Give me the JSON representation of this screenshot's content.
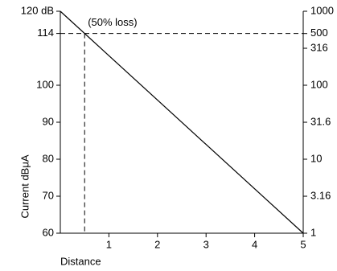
{
  "chart_data": {
    "type": "line",
    "x_label": "Distance",
    "y_label": "Current dBμA",
    "x": [
      0,
      5
    ],
    "series": [
      {
        "color": "#000000",
        "values": [
          120,
          60
        ]
      }
    ],
    "xlim": [
      0,
      5
    ],
    "xticks": [
      1,
      2,
      3,
      4,
      5
    ],
    "ylim": [
      60,
      120
    ],
    "yticks": [
      60,
      70,
      80,
      90,
      100,
      114,
      {
        "value": 120,
        "label": "120 dB"
      }
    ],
    "y2lim": [
      1,
      1000
    ],
    "y2scale": "log",
    "y2ticks": [
      1,
      3.16,
      10,
      31.6,
      100,
      316,
      500,
      1000
    ],
    "reference": {
      "x": 0.5,
      "y": 114,
      "label": "(50% loss)"
    },
    "grid": false
  }
}
